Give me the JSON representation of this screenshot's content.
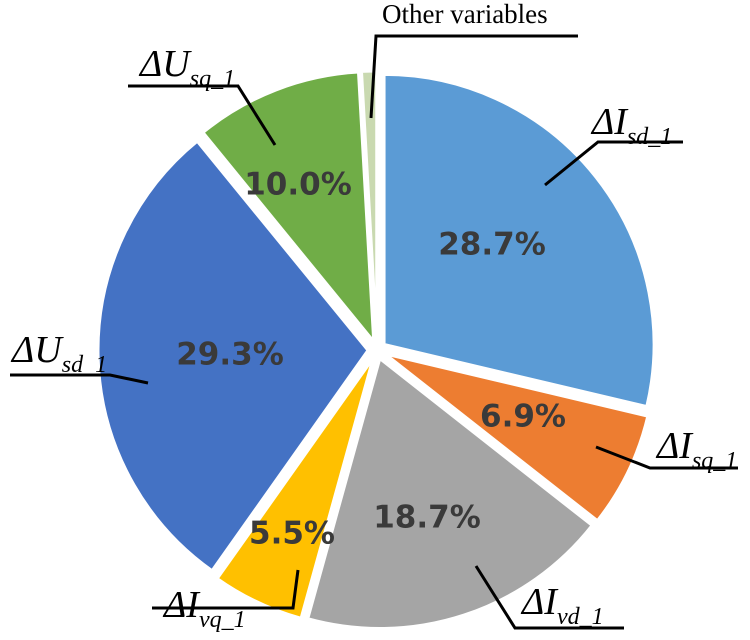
{
  "chart_data": {
    "type": "pie",
    "start_angle_deg": 0,
    "direction": "clockwise",
    "slices": [
      {
        "label_main": "ΔI",
        "label_sub": "sd_1",
        "value": 28.7,
        "display": "28.7%",
        "color": "#5b9bd5"
      },
      {
        "label_main": "ΔI",
        "label_sub": "sq_1",
        "value": 6.9,
        "display": "6.9%",
        "color": "#ed7d31"
      },
      {
        "label_main": "ΔI",
        "label_sub": "vd_1",
        "value": 18.7,
        "display": "18.7%",
        "color": "#a5a5a5"
      },
      {
        "label_main": "ΔI",
        "label_sub": "vq_1",
        "value": 5.5,
        "display": "5.5%",
        "color": "#ffc000"
      },
      {
        "label_main": "ΔU",
        "label_sub": "sd_1",
        "value": 29.3,
        "display": "29.3%",
        "color": "#4472c4"
      },
      {
        "label_main": "ΔU",
        "label_sub": "sq_1",
        "value": 10.0,
        "display": "10.0%",
        "color": "#70ad47"
      },
      {
        "label_plain": "Other variables",
        "value": 0.9,
        "display": "",
        "color": "#c9d9b0"
      }
    ]
  }
}
